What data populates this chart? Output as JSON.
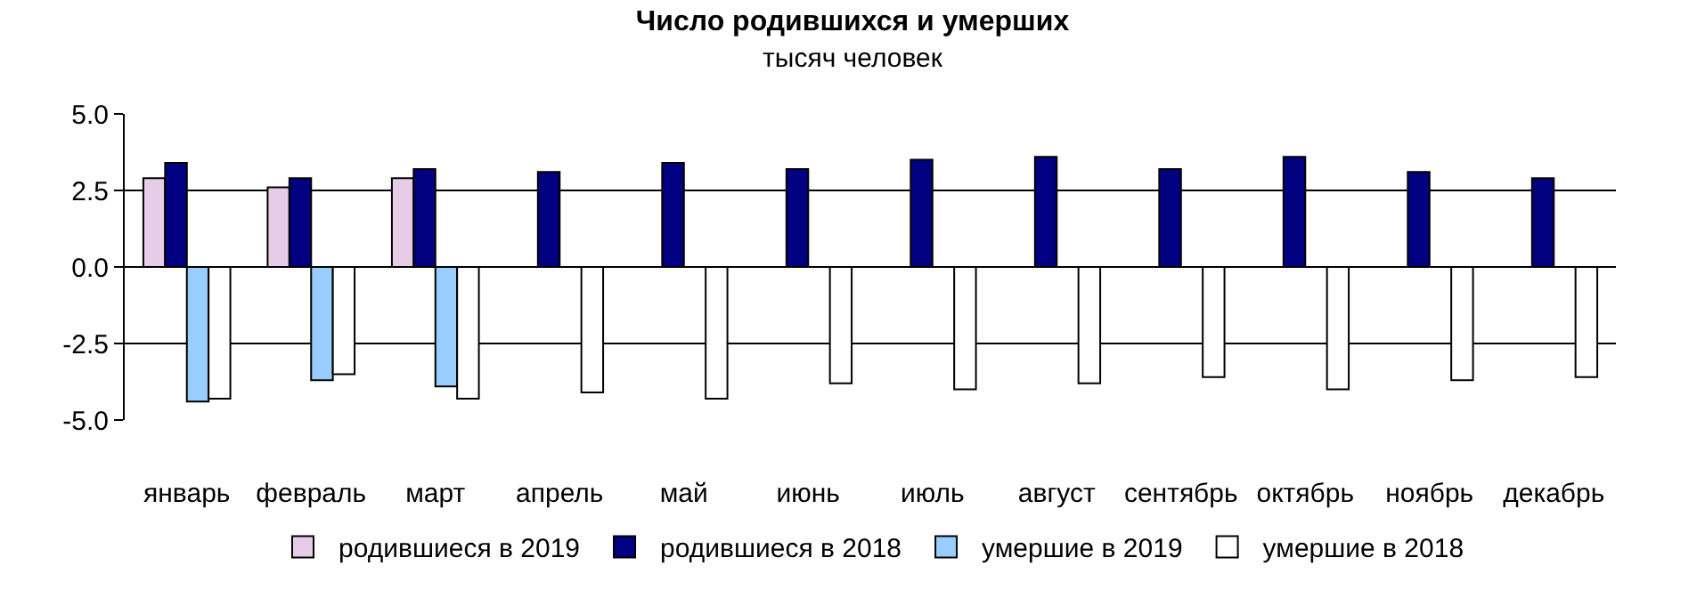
{
  "chart_data": {
    "type": "bar",
    "title": "Число родившихся и умерших",
    "subtitle": "тысяч человек",
    "categories": [
      "январь",
      "февраль",
      "март",
      "апрель",
      "май",
      "июнь",
      "июль",
      "август",
      "сентябрь",
      "октябрь",
      "ноябрь",
      "декабрь"
    ],
    "series": [
      {
        "name": "родившиеся в 2019",
        "color": "#e6cce6",
        "values": [
          2.9,
          2.6,
          2.9,
          null,
          null,
          null,
          null,
          null,
          null,
          null,
          null,
          null
        ]
      },
      {
        "name": "родившиеся в 2018",
        "color": "#000080",
        "values": [
          3.4,
          2.9,
          3.2,
          3.1,
          3.4,
          3.2,
          3.5,
          3.6,
          3.2,
          3.6,
          3.1,
          2.9
        ]
      },
      {
        "name": "умершие в 2019",
        "color": "#99ccff",
        "values": [
          -4.4,
          -3.7,
          -3.9,
          null,
          null,
          null,
          null,
          null,
          null,
          null,
          null,
          null
        ]
      },
      {
        "name": "умершие в 2018",
        "color": "#ffffff",
        "values": [
          -4.3,
          -3.5,
          -4.3,
          -4.1,
          -4.3,
          -3.8,
          -4.0,
          -3.8,
          -3.6,
          -4.0,
          -3.7,
          -3.6
        ]
      }
    ],
    "ylim": [
      -5,
      5
    ],
    "yticks": [
      {
        "value": 5,
        "label": "5.0"
      },
      {
        "value": 2.5,
        "label": "2.5"
      },
      {
        "value": 0,
        "label": "0.0"
      },
      {
        "value": -2.5,
        "label": "-2.5"
      },
      {
        "value": -5,
        "label": "-5.0"
      }
    ],
    "grid": "y",
    "legend": "bottom"
  }
}
